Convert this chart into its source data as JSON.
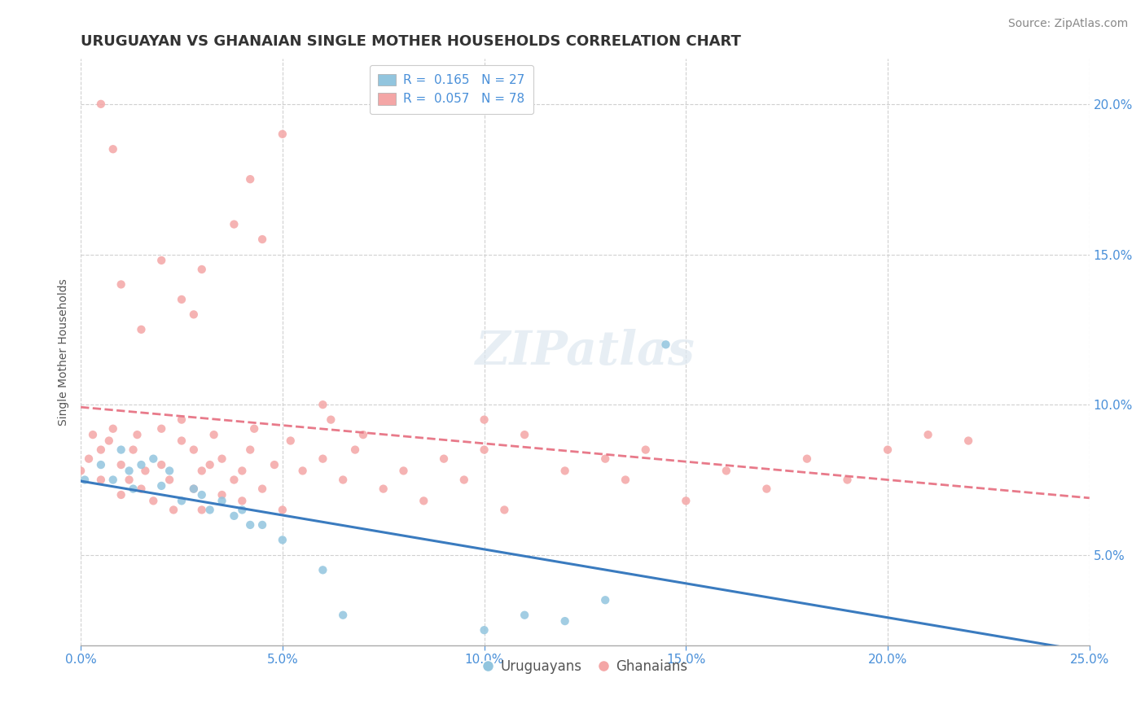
{
  "title": "URUGUAYAN VS GHANAIAN SINGLE MOTHER HOUSEHOLDS CORRELATION CHART",
  "source": "Source: ZipAtlas.com",
  "ylabel": "Single Mother Households",
  "xlim": [
    0.0,
    0.25
  ],
  "ylim": [
    0.02,
    0.215
  ],
  "watermark": "ZIPatlas",
  "uruguayan_R": 0.165,
  "uruguayan_N": 27,
  "ghanaian_R": 0.057,
  "ghanaian_N": 78,
  "uruguayan_color": "#92c5de",
  "ghanaian_color": "#f4a6a6",
  "uruguayan_line_color": "#3a7bbf",
  "ghanaian_line_color": "#e87a8a",
  "uruguayan_x": [
    0.001,
    0.005,
    0.008,
    0.01,
    0.012,
    0.013,
    0.015,
    0.018,
    0.02,
    0.022,
    0.025,
    0.028,
    0.03,
    0.032,
    0.035,
    0.038,
    0.04,
    0.042,
    0.045,
    0.05,
    0.06,
    0.065,
    0.1,
    0.11,
    0.12,
    0.13,
    0.145
  ],
  "uruguayan_y": [
    0.075,
    0.08,
    0.075,
    0.085,
    0.078,
    0.072,
    0.08,
    0.082,
    0.073,
    0.078,
    0.068,
    0.072,
    0.07,
    0.065,
    0.068,
    0.063,
    0.065,
    0.06,
    0.06,
    0.055,
    0.045,
    0.03,
    0.025,
    0.03,
    0.028,
    0.035,
    0.12
  ],
  "ghanaian_x": [
    0.0,
    0.002,
    0.003,
    0.005,
    0.005,
    0.007,
    0.008,
    0.01,
    0.01,
    0.012,
    0.013,
    0.014,
    0.015,
    0.016,
    0.018,
    0.02,
    0.02,
    0.022,
    0.023,
    0.025,
    0.025,
    0.028,
    0.028,
    0.03,
    0.03,
    0.032,
    0.033,
    0.035,
    0.035,
    0.038,
    0.04,
    0.04,
    0.042,
    0.043,
    0.045,
    0.048,
    0.05,
    0.052,
    0.055,
    0.06,
    0.062,
    0.065,
    0.068,
    0.07,
    0.075,
    0.08,
    0.085,
    0.09,
    0.095,
    0.1,
    0.105,
    0.11,
    0.12,
    0.13,
    0.135,
    0.14,
    0.15,
    0.16,
    0.17,
    0.18,
    0.19,
    0.2,
    0.21,
    0.22,
    0.1,
    0.045,
    0.028,
    0.02,
    0.015,
    0.01,
    0.008,
    0.005,
    0.025,
    0.03,
    0.038,
    0.042,
    0.05,
    0.06
  ],
  "ghanaian_y": [
    0.078,
    0.082,
    0.09,
    0.075,
    0.085,
    0.088,
    0.092,
    0.07,
    0.08,
    0.075,
    0.085,
    0.09,
    0.072,
    0.078,
    0.068,
    0.08,
    0.092,
    0.075,
    0.065,
    0.088,
    0.095,
    0.072,
    0.085,
    0.065,
    0.078,
    0.08,
    0.09,
    0.07,
    0.082,
    0.075,
    0.068,
    0.078,
    0.085,
    0.092,
    0.072,
    0.08,
    0.065,
    0.088,
    0.078,
    0.082,
    0.095,
    0.075,
    0.085,
    0.09,
    0.072,
    0.078,
    0.068,
    0.082,
    0.075,
    0.085,
    0.065,
    0.09,
    0.078,
    0.082,
    0.075,
    0.085,
    0.068,
    0.078,
    0.072,
    0.082,
    0.075,
    0.085,
    0.09,
    0.088,
    0.095,
    0.155,
    0.13,
    0.148,
    0.125,
    0.14,
    0.185,
    0.2,
    0.135,
    0.145,
    0.16,
    0.175,
    0.19,
    0.1
  ],
  "title_fontsize": 13,
  "axis_label_fontsize": 10,
  "tick_fontsize": 11,
  "legend_fontsize": 11,
  "source_fontsize": 10,
  "watermark_fontsize": 42,
  "background_color": "#ffffff",
  "plot_bg_color": "#ffffff",
  "grid_color": "#d0d0d0",
  "title_color": "#333333",
  "tick_color": "#4a90d9",
  "ylabel_color": "#555555",
  "source_color": "#888888"
}
